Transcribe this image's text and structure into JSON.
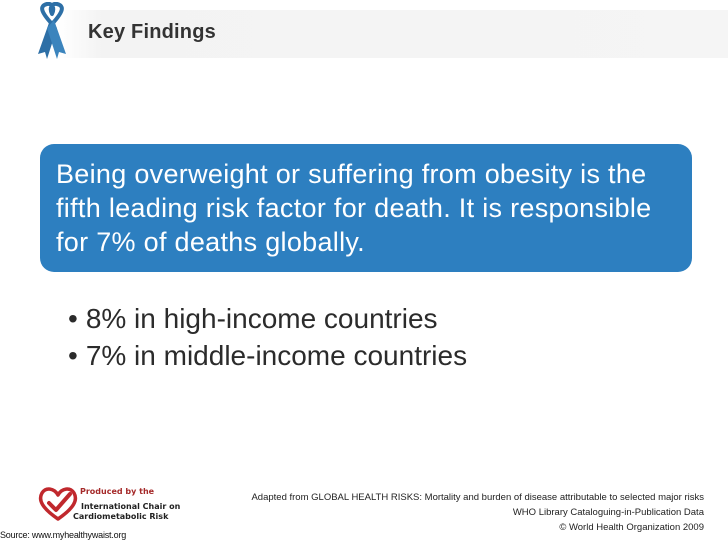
{
  "header": {
    "title": "Key Findings",
    "ribbon_icon": "ribbon-icon",
    "ribbon_color": "#2d6fa6"
  },
  "callout": {
    "text": "Being overweight or suffering from obesity is the fifth leading risk factor for death. It is responsible for 7% of deaths globally.",
    "background": "#2d7fc0"
  },
  "bullets": [
    "8% in high-income countries",
    "7% in middle-income countries"
  ],
  "footer": {
    "logo_icon": "heart-check-icon",
    "produced_by": "Produced by the",
    "chair_line1": "International Chair on",
    "chair_line2": "Cardiometabolic Risk",
    "source": "Source: www.myhealthywaist.org",
    "citation_line1": "Adapted from GLOBAL HEALTH RISKS: Mortality and burden of disease attributable to selected major risks",
    "citation_line2": "WHO Library Cataloguing-in-Publication Data",
    "citation_line3": "© World Health Organization 2009"
  }
}
